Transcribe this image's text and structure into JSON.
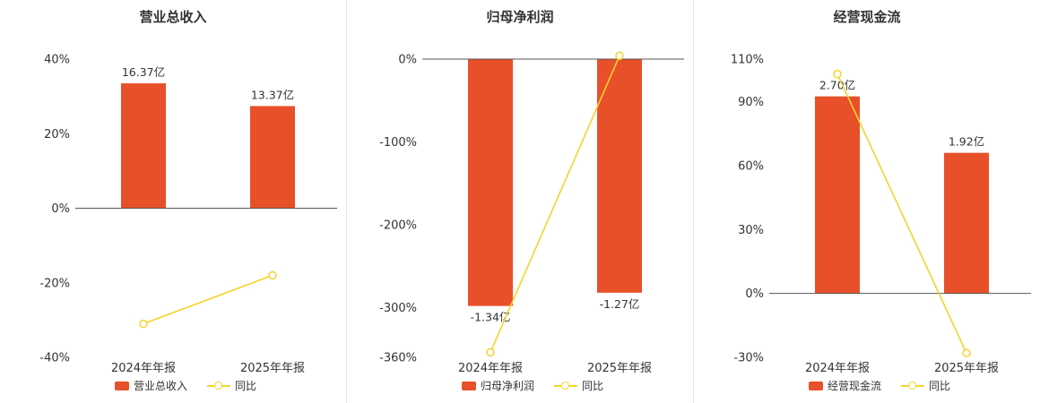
{
  "page": {
    "background": "#ffffff"
  },
  "colors": {
    "bar": "#e8502a",
    "line": "#f5d42c",
    "axis_line": "#555555",
    "text": "#333333",
    "divider": "#e4e4e4"
  },
  "chart_data": [
    {
      "type": "bar",
      "title": "营业总收入",
      "categories": [
        "2024年年报",
        "2025年年报"
      ],
      "y_axis": {
        "min": -40,
        "max": 40,
        "tick_values": [
          40,
          20,
          0,
          -20,
          -40
        ],
        "tick_labels": [
          "40%",
          "20%",
          "0%",
          "-20%",
          "-40%"
        ]
      },
      "bar_series": {
        "name": "营业总收入",
        "value_labels": [
          "16.37亿",
          "13.37亿"
        ],
        "plot_values": [
          33.5,
          27.4
        ]
      },
      "line_series": {
        "name": "同比",
        "plot_values": [
          -31,
          -18
        ]
      },
      "legend_position": "bottom",
      "grid": false
    },
    {
      "type": "bar",
      "title": "归母净利润",
      "categories": [
        "2024年年报",
        "2025年年报"
      ],
      "y_axis": {
        "min": -360,
        "max": 0,
        "tick_values": [
          0,
          -100,
          -200,
          -300,
          -360
        ],
        "tick_labels": [
          "0%",
          "-100%",
          "-200%",
          "-300%",
          "-360%"
        ]
      },
      "bar_series": {
        "name": "归母净利润",
        "value_labels": [
          "-1.34亿",
          "-1.27亿"
        ],
        "plot_values": [
          -298,
          -282
        ]
      },
      "line_series": {
        "name": "同比",
        "plot_values": [
          -354,
          4
        ]
      },
      "legend_position": "bottom",
      "grid": false
    },
    {
      "type": "bar",
      "title": "经营现金流",
      "categories": [
        "2024年年报",
        "2025年年报"
      ],
      "y_axis": {
        "min": -30,
        "max": 110,
        "tick_values": [
          110,
          90,
          60,
          30,
          0,
          -30
        ],
        "tick_labels": [
          "110%",
          "90%",
          "60%",
          "30%",
          "0%",
          "-30%"
        ]
      },
      "bar_series": {
        "name": "经营现金流",
        "value_labels": [
          "2.70亿",
          "1.92亿"
        ],
        "plot_values": [
          92.5,
          66
        ]
      },
      "line_series": {
        "name": "同比",
        "plot_values": [
          103,
          -28
        ]
      },
      "legend_position": "bottom",
      "grid": false
    }
  ]
}
